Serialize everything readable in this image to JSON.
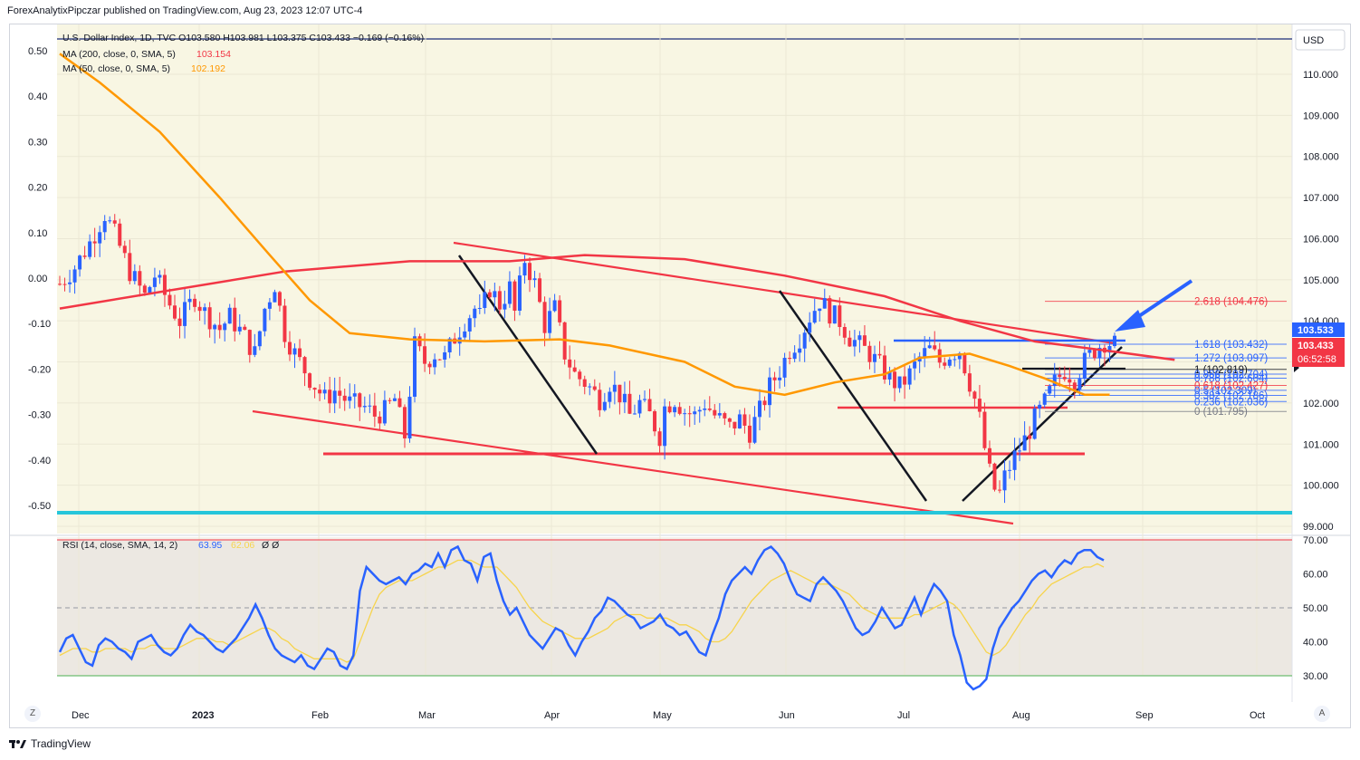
{
  "publisher_line": "ForexAnalytixPipczar published on TradingView.com, Aug 23, 2023 12:07 UTC-4",
  "footer_brand": "TradingView",
  "buttons": {
    "zoom": "Z",
    "auto": "A"
  },
  "currency_label": "USD",
  "legend": {
    "symbol_line": "U.S. Dollar Index, 1D, TVC  O103.580  H103.981  L103.375  C103.433  −0.169 (−0.16%)",
    "ma200_text": "MA (200, close, 0, SMA, 5)",
    "ma200_value": "103.154",
    "ma50_text": "MA (50, close, 0, SMA, 5)",
    "ma50_value": "102.192",
    "rsi_text": "RSI (14, close, SMA, 14, 2)",
    "rsi_value": "63.95",
    "rsi_ma_value": "62.06",
    "rsi_extra": "Ø  Ø"
  },
  "price_tags": {
    "high_tag": "103.533",
    "last_tag": "103.433",
    "countdown": "06:52:58"
  },
  "colors": {
    "ma200": "#f23645",
    "ma50": "#ff9800",
    "rsi": "#2962ff",
    "rsi_ma": "#f7d44c",
    "bull": "#2962ff",
    "bear": "#f23645",
    "teal": "#26c6da",
    "bg": "#f8f6e3"
  },
  "chart_data": [
    {
      "type": "candlestick",
      "title": "U.S. Dollar Index, 1D, TVC",
      "ylim": [
        98.9,
        111.1
      ],
      "right_axis_ticks": [
        "110.000",
        "109.000",
        "108.000",
        "107.000",
        "106.000",
        "105.000",
        "104.000",
        "103.000",
        "102.000",
        "101.000",
        "100.000",
        "99.000"
      ],
      "left_axis_ticks": [
        "0.50",
        "0.40",
        "0.30",
        "0.20",
        "0.10",
        "0.00",
        "-0.10",
        "-0.20",
        "-0.30",
        "-0.40",
        "-0.50"
      ],
      "x_ticks": [
        "Dec",
        "2023",
        "Feb",
        "Mar",
        "Apr",
        "May",
        "Jun",
        "Jul",
        "Aug",
        "Sep",
        "Oct"
      ],
      "close_path": [
        [
          104.9,
          0
        ],
        [
          105.3,
          3
        ],
        [
          105.9,
          6
        ],
        [
          106.6,
          9
        ],
        [
          106.1,
          11
        ],
        [
          105.2,
          14
        ],
        [
          104.6,
          17
        ],
        [
          105.1,
          19
        ],
        [
          104.4,
          22
        ],
        [
          104.0,
          24
        ],
        [
          104.6,
          27
        ],
        [
          104.2,
          29
        ],
        [
          103.8,
          32
        ],
        [
          104.1,
          34
        ],
        [
          103.6,
          37
        ],
        [
          103.2,
          39
        ],
        [
          104.3,
          41
        ],
        [
          104.9,
          43
        ],
        [
          103.7,
          45
        ],
        [
          103.2,
          47
        ],
        [
          102.6,
          50
        ],
        [
          102.1,
          53
        ],
        [
          102.3,
          55
        ],
        [
          102.0,
          58
        ],
        [
          101.9,
          61
        ],
        [
          101.7,
          63
        ],
        [
          101.8,
          65
        ],
        [
          102.1,
          67
        ],
        [
          101.2,
          69
        ],
        [
          102.3,
          70
        ],
        [
          103.4,
          71
        ],
        [
          103.0,
          73
        ],
        [
          103.2,
          75
        ],
        [
          103.1,
          77
        ],
        [
          103.6,
          79
        ],
        [
          104.0,
          81
        ],
        [
          104.3,
          83
        ],
        [
          104.1,
          84
        ],
        [
          104.8,
          86
        ],
        [
          104.4,
          88
        ],
        [
          104.8,
          90
        ],
        [
          104.2,
          91
        ],
        [
          105.5,
          93
        ],
        [
          104.9,
          95
        ],
        [
          103.9,
          97
        ],
        [
          104.3,
          99
        ],
        [
          103.2,
          101
        ],
        [
          102.7,
          103
        ],
        [
          102.5,
          105
        ],
        [
          102.1,
          108
        ],
        [
          102.5,
          110
        ],
        [
          102.2,
          112
        ],
        [
          101.7,
          114
        ],
        [
          102.0,
          116
        ],
        [
          101.7,
          118
        ],
        [
          101.2,
          120
        ],
        [
          101.9,
          121
        ],
        [
          102.1,
          123
        ],
        [
          101.8,
          125
        ],
        [
          101.7,
          127
        ],
        [
          102.0,
          129
        ],
        [
          101.7,
          131
        ],
        [
          101.4,
          134
        ],
        [
          101.6,
          136
        ],
        [
          101.3,
          138
        ],
        [
          101.8,
          140
        ],
        [
          102.4,
          142
        ],
        [
          102.8,
          144
        ],
        [
          103.3,
          146
        ],
        [
          103.6,
          148
        ],
        [
          104.1,
          150
        ],
        [
          104.5,
          152
        ],
        [
          104.2,
          154
        ],
        [
          104.0,
          156
        ],
        [
          103.6,
          158
        ],
        [
          103.4,
          160
        ],
        [
          103.2,
          162
        ],
        [
          102.9,
          164
        ],
        [
          102.6,
          166
        ],
        [
          102.4,
          168
        ],
        [
          102.7,
          170
        ],
        [
          103.1,
          172
        ],
        [
          103.3,
          174
        ],
        [
          103.0,
          176
        ],
        [
          103.2,
          178
        ],
        [
          103.3,
          180
        ],
        [
          102.5,
          182
        ],
        [
          102.1,
          183
        ],
        [
          101.6,
          184
        ],
        [
          100.9,
          185
        ],
        [
          100.3,
          186
        ],
        [
          99.9,
          187
        ],
        [
          99.8,
          188
        ],
        [
          100.2,
          189
        ],
        [
          100.7,
          191
        ],
        [
          101.1,
          193
        ],
        [
          101.6,
          195
        ],
        [
          102.0,
          197
        ],
        [
          102.5,
          199
        ],
        [
          102.8,
          201
        ],
        [
          102.6,
          203
        ],
        [
          103.0,
          205
        ],
        [
          103.3,
          207
        ],
        [
          103.5,
          209
        ],
        [
          103.43,
          211
        ]
      ],
      "annotations": [
        {
          "type": "hline",
          "label": "blue resistance",
          "value": 103.5
        },
        {
          "type": "hline",
          "label": "red support",
          "value": 101.9
        },
        {
          "type": "hline",
          "label": "red support low",
          "value": 100.8
        },
        {
          "type": "hline",
          "label": "teal line",
          "value": 99.35
        },
        {
          "type": "arrow",
          "label": "blue arrow pointing at price"
        }
      ],
      "fib_levels": [
        {
          "label": "2.618 (104.476)",
          "value": 104.476
        },
        {
          "label": "1.618 (103.432)",
          "value": 103.432
        },
        {
          "label": "1.272 (103.097)",
          "value": 103.097
        },
        {
          "label": "1 (102.819)",
          "value": 102.819
        },
        {
          "label": "0.886 (102.704)",
          "value": 102.704
        },
        {
          "label": "0.786 (102.604)",
          "value": 102.604
        },
        {
          "label": "0.618 (102.427)",
          "value": 102.427
        },
        {
          "label": "0.5 (102.309)",
          "value": 102.309
        },
        {
          "label": "0.382 (102.186)",
          "value": 102.186
        },
        {
          "label": "0.236 (102.036)",
          "value": 102.036
        },
        {
          "label": "0 (101.795)",
          "value": 101.795
        }
      ]
    },
    {
      "type": "line",
      "title": "RSI (14, close, SMA, 14, 2)",
      "ylim": [
        25,
        72
      ],
      "y_ticks": [
        "70.00",
        "60.00",
        "50.00",
        "40.00",
        "30.00"
      ],
      "series": [
        {
          "name": "RSI",
          "values": [
            37,
            41,
            42,
            38,
            34,
            33,
            39,
            41,
            40,
            38,
            37,
            35,
            40,
            41,
            42,
            39,
            37,
            36,
            38,
            42,
            45,
            43,
            42,
            40,
            38,
            37,
            39,
            41,
            44,
            47,
            51,
            47,
            42,
            38,
            36,
            35,
            34,
            36,
            33,
            32,
            35,
            38,
            37,
            33,
            32,
            36,
            55,
            62,
            60,
            58,
            57,
            58,
            59,
            57,
            60,
            61,
            63,
            62,
            66,
            62,
            67,
            68,
            64,
            63,
            58,
            65,
            66,
            58,
            52,
            48,
            50,
            46,
            42,
            40,
            38,
            41,
            44,
            43,
            39,
            36,
            40,
            43,
            47,
            49,
            53,
            52,
            50,
            48,
            47,
            44,
            45,
            46,
            48,
            45,
            44,
            42,
            43,
            40,
            37,
            36,
            42,
            47,
            54,
            58,
            60,
            62,
            60,
            64,
            67,
            68,
            66,
            63,
            58,
            54,
            53,
            52,
            57,
            59,
            57,
            55,
            52,
            48,
            44,
            42,
            43,
            46,
            50,
            47,
            44,
            45,
            49,
            53,
            48,
            53,
            57,
            55,
            52,
            42,
            36,
            28,
            26,
            27,
            29,
            38,
            44,
            47,
            50,
            52,
            55,
            58,
            60,
            61,
            59,
            62,
            64,
            63,
            66,
            67,
            67,
            65,
            64
          ]
        },
        {
          "name": "RSI MA",
          "values": [
            36,
            37,
            38,
            38,
            38,
            37,
            37,
            38,
            38,
            38,
            38,
            37,
            38,
            38,
            39,
            39,
            38,
            38,
            38,
            39,
            40,
            41,
            41,
            41,
            40,
            40,
            39,
            40,
            41,
            42,
            43,
            44,
            44,
            43,
            41,
            40,
            38,
            37,
            36,
            35,
            35,
            35,
            35,
            35,
            34,
            35,
            40,
            45,
            50,
            54,
            56,
            57,
            58,
            58,
            58,
            59,
            60,
            61,
            62,
            62,
            63,
            64,
            64,
            64,
            63,
            62,
            62,
            62,
            60,
            58,
            56,
            53,
            50,
            48,
            46,
            45,
            44,
            43,
            42,
            41,
            41,
            41,
            42,
            43,
            44,
            46,
            47,
            48,
            48,
            48,
            47,
            47,
            47,
            47,
            46,
            45,
            45,
            44,
            43,
            41,
            40,
            40,
            41,
            43,
            46,
            49,
            52,
            54,
            56,
            58,
            59,
            60,
            61,
            60,
            59,
            58,
            57,
            57,
            57,
            56,
            55,
            54,
            52,
            50,
            49,
            48,
            47,
            47,
            47,
            47,
            47,
            48,
            48,
            49,
            50,
            51,
            52,
            51,
            49,
            46,
            43,
            40,
            37,
            36,
            37,
            39,
            42,
            45,
            48,
            50,
            53,
            55,
            57,
            58,
            59,
            60,
            61,
            62,
            62,
            63,
            62
          ]
        }
      ],
      "x_ticks": [
        "Dec",
        "2023",
        "Feb",
        "Mar",
        "Apr",
        "May",
        "Jun",
        "Jul",
        "Aug",
        "Sep",
        "Oct"
      ]
    }
  ]
}
